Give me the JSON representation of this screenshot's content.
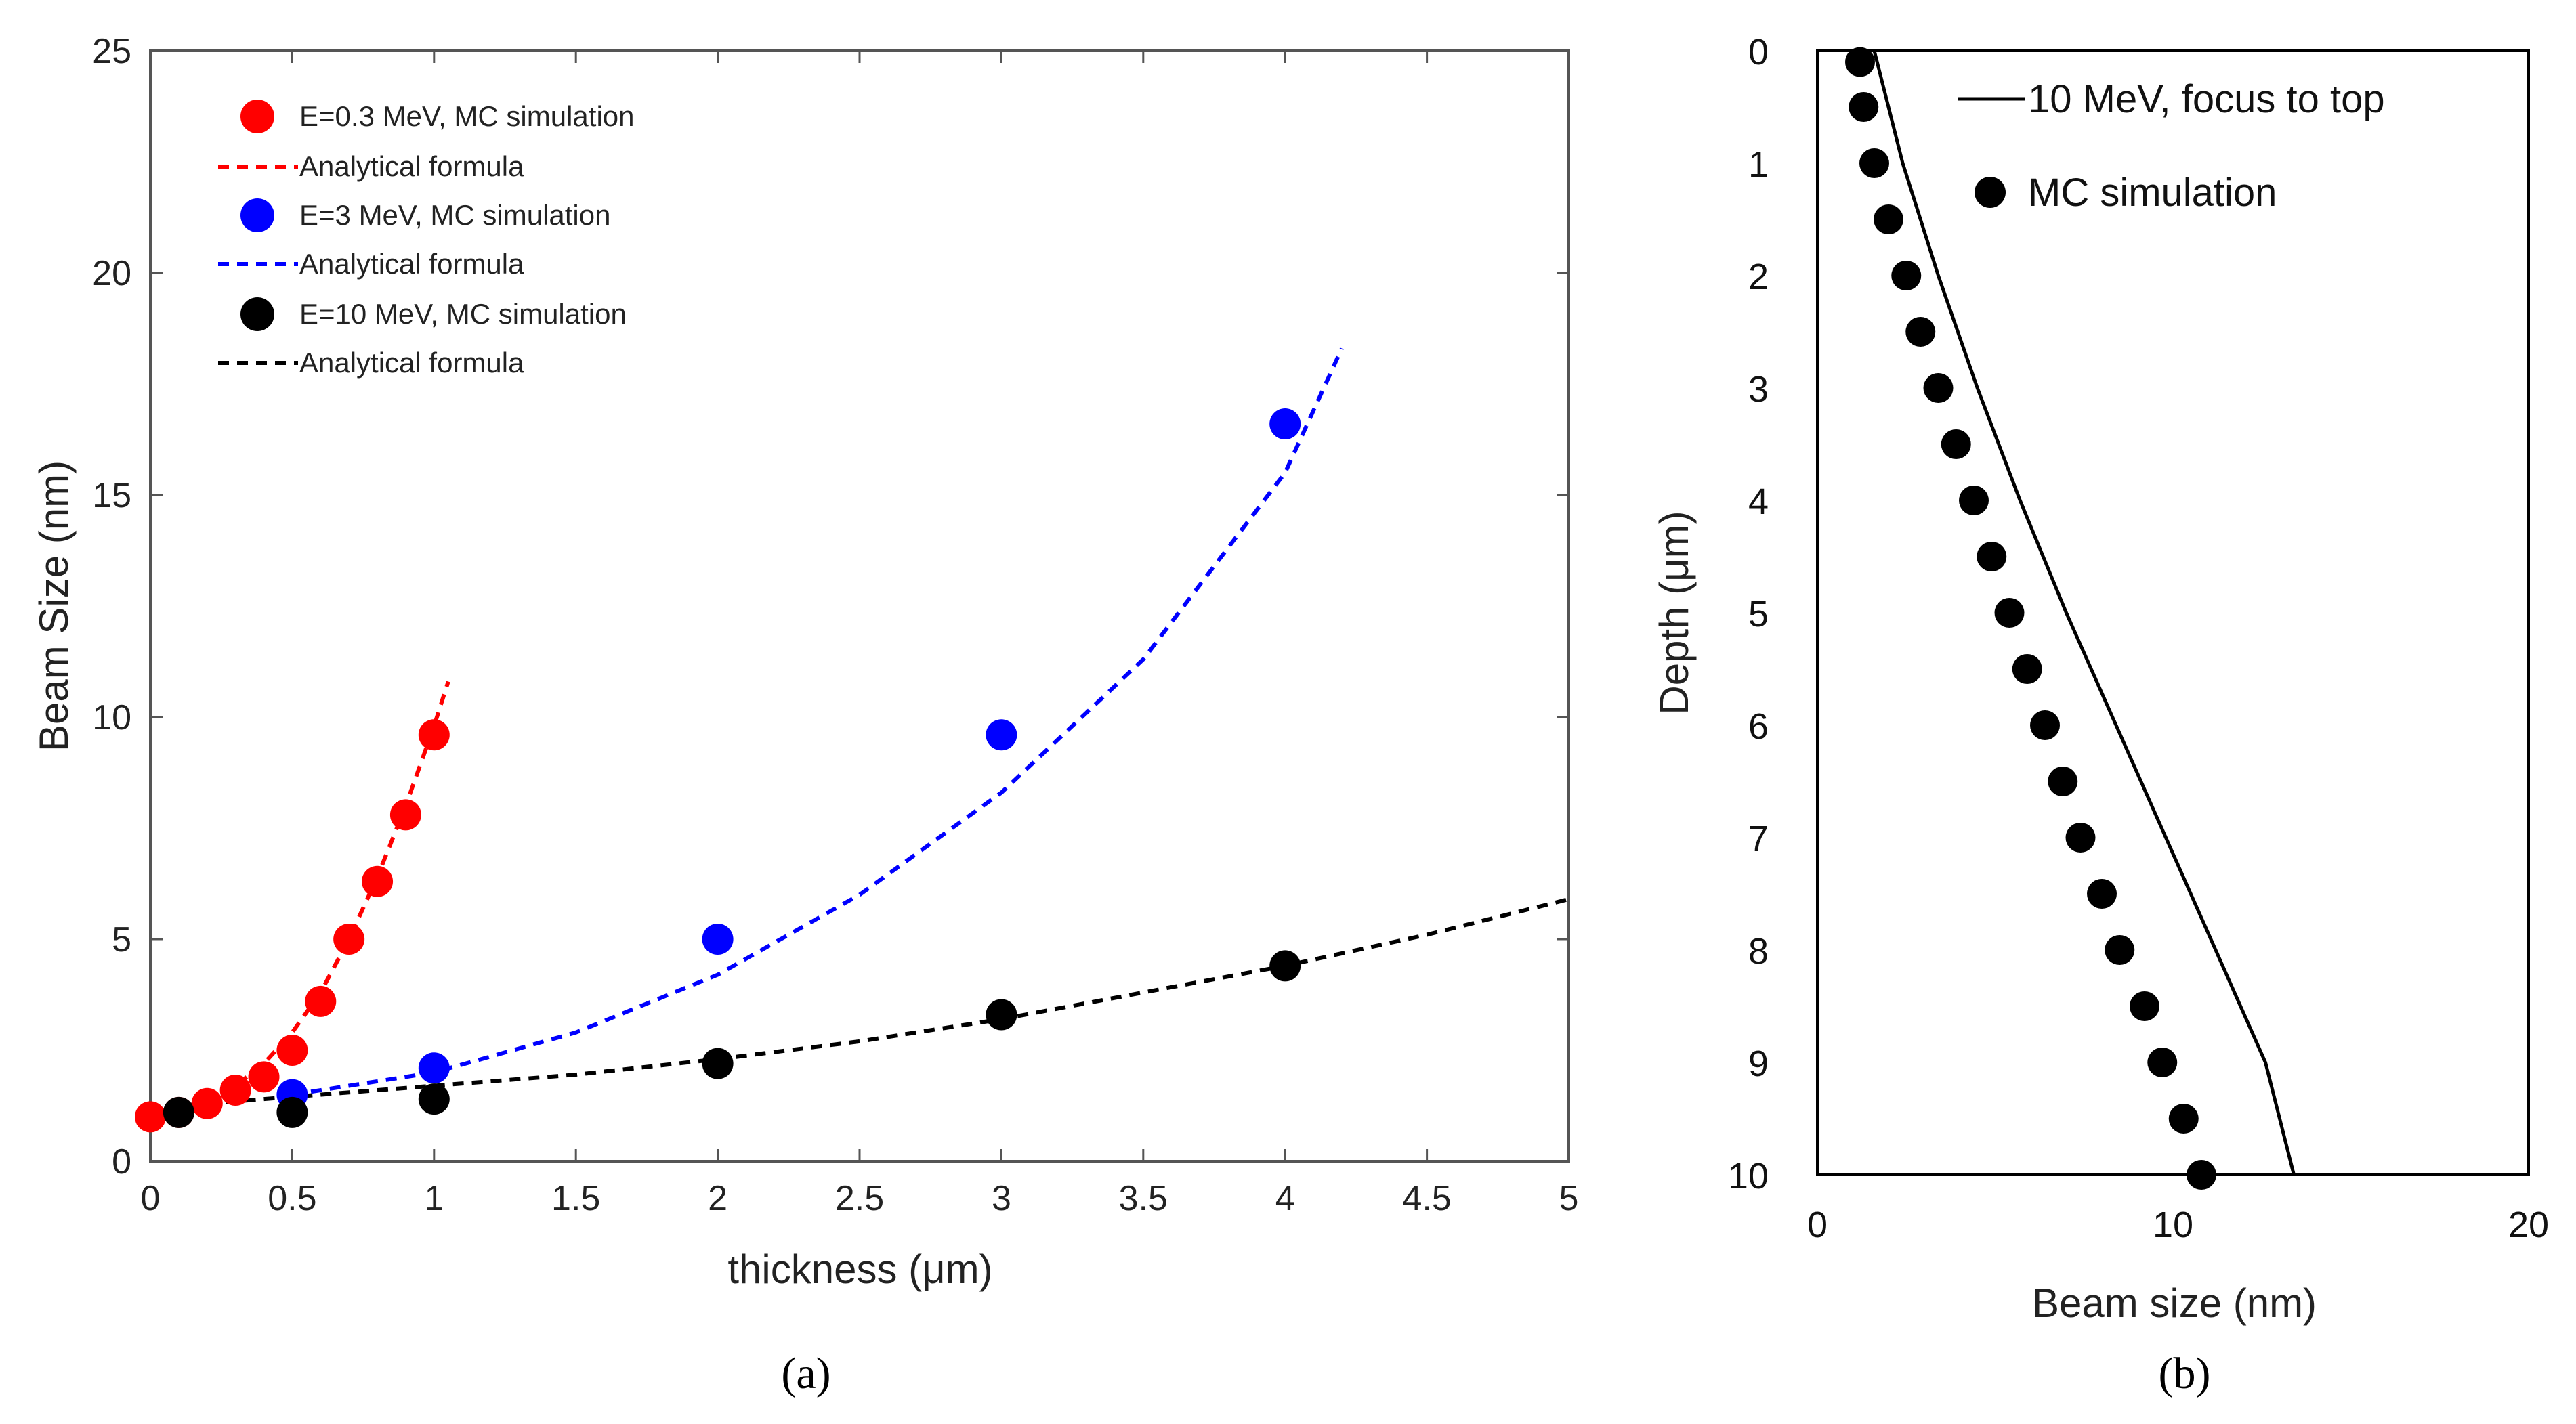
{
  "chart_data": [
    {
      "type": "scatter",
      "panel": "(a)",
      "xlabel": "thickness (μm)",
      "ylabel": "Beam Size (nm)",
      "xlim": [
        0,
        5
      ],
      "ylim": [
        0,
        25
      ],
      "xticks": [
        "0",
        "0.5",
        "1",
        "1.5",
        "2",
        "2.5",
        "3",
        "3.5",
        "4",
        "4.5",
        "5"
      ],
      "yticks": [
        "0",
        "5",
        "10",
        "15",
        "20",
        "25"
      ],
      "legend_position": "top-left",
      "series": [
        {
          "name": "E=0.3 MeV, MC simulation",
          "kind": "points",
          "color": "#ff0000",
          "x": [
            0,
            0.1,
            0.2,
            0.3,
            0.4,
            0.5,
            0.6,
            0.7,
            0.8,
            0.9,
            1.0
          ],
          "y": [
            1.0,
            1.1,
            1.3,
            1.6,
            1.9,
            2.5,
            3.6,
            5.0,
            6.3,
            7.8,
            9.6
          ]
        },
        {
          "name": "Analytical formula",
          "kind": "dashed-line",
          "color": "#ff0000",
          "x": [
            0,
            0.1,
            0.2,
            0.3,
            0.4,
            0.5,
            0.6,
            0.7,
            0.8,
            0.9,
            1.0,
            1.05
          ],
          "y": [
            1.0,
            1.12,
            1.35,
            1.7,
            2.2,
            2.9,
            3.8,
            5.0,
            6.4,
            8.0,
            9.8,
            10.8
          ]
        },
        {
          "name": "E=3 MeV, MC simulation",
          "kind": "points",
          "color": "#0000ff",
          "x": [
            0.5,
            1,
            2,
            3,
            4
          ],
          "y": [
            1.5,
            2.1,
            5.0,
            9.6,
            16.6
          ]
        },
        {
          "name": "Analytical formula",
          "kind": "dashed-line",
          "color": "#0000ff",
          "x": [
            0.5,
            1,
            1.5,
            2,
            2.5,
            3,
            3.5,
            4,
            4.2
          ],
          "y": [
            1.5,
            2.0,
            2.9,
            4.2,
            6.0,
            8.3,
            11.3,
            15.5,
            18.3
          ]
        },
        {
          "name": "E=10 MeV, MC simulation",
          "kind": "points",
          "color": "#000000",
          "x": [
            0.1,
            0.5,
            1,
            2,
            3,
            4
          ],
          "y": [
            1.1,
            1.1,
            1.4,
            2.2,
            3.3,
            4.4
          ]
        },
        {
          "name": "Analytical formula",
          "kind": "dashed-line",
          "color": "#000000",
          "x": [
            0,
            0.5,
            1,
            1.5,
            2,
            2.5,
            3,
            3.5,
            4,
            4.5,
            5
          ],
          "y": [
            1.2,
            1.45,
            1.7,
            1.95,
            2.3,
            2.7,
            3.2,
            3.8,
            4.4,
            5.1,
            5.9
          ]
        }
      ]
    },
    {
      "type": "scatter",
      "panel": "(b)",
      "xlabel": "Beam size (nm)",
      "ylabel": "Depth  (μm)",
      "xlim": [
        0,
        20
      ],
      "ylim": [
        0,
        10
      ],
      "y_inverted": true,
      "xticks": [
        "0",
        "10",
        "20"
      ],
      "yticks": [
        "0",
        "1",
        "2",
        "3",
        "4",
        "5",
        "6",
        "7",
        "8",
        "9",
        "10"
      ],
      "legend_position": "top-right",
      "series": [
        {
          "name": "10 MeV, focus to top",
          "kind": "solid-line",
          "color": "#000000",
          "x": [
            1.6,
            2.4,
            3.4,
            4.5,
            5.7,
            7.0,
            8.4,
            9.8,
            11.2,
            12.6,
            13.4
          ],
          "y": [
            0,
            1,
            2,
            3,
            4,
            5,
            6,
            7,
            8,
            9,
            10
          ]
        },
        {
          "name": "MC simulation",
          "kind": "points",
          "color": "#000000",
          "x": [
            1.2,
            1.3,
            1.6,
            2.0,
            2.5,
            2.9,
            3.4,
            3.9,
            4.4,
            4.9,
            5.4,
            5.9,
            6.4,
            6.9,
            7.4,
            8.0,
            8.5,
            9.2,
            9.7,
            10.3,
            10.8
          ],
          "y": [
            0.1,
            0.5,
            1.0,
            1.5,
            2.0,
            2.5,
            3.0,
            3.5,
            4.0,
            4.5,
            5.0,
            5.5,
            6.0,
            6.5,
            7.0,
            7.5,
            8.0,
            8.5,
            9.0,
            9.5,
            10.0
          ]
        }
      ]
    }
  ],
  "captions": {
    "a": "(a)",
    "b": "(b)"
  },
  "colors": {
    "red": "#ff0000",
    "blue": "#0000ff",
    "black": "#000000"
  }
}
